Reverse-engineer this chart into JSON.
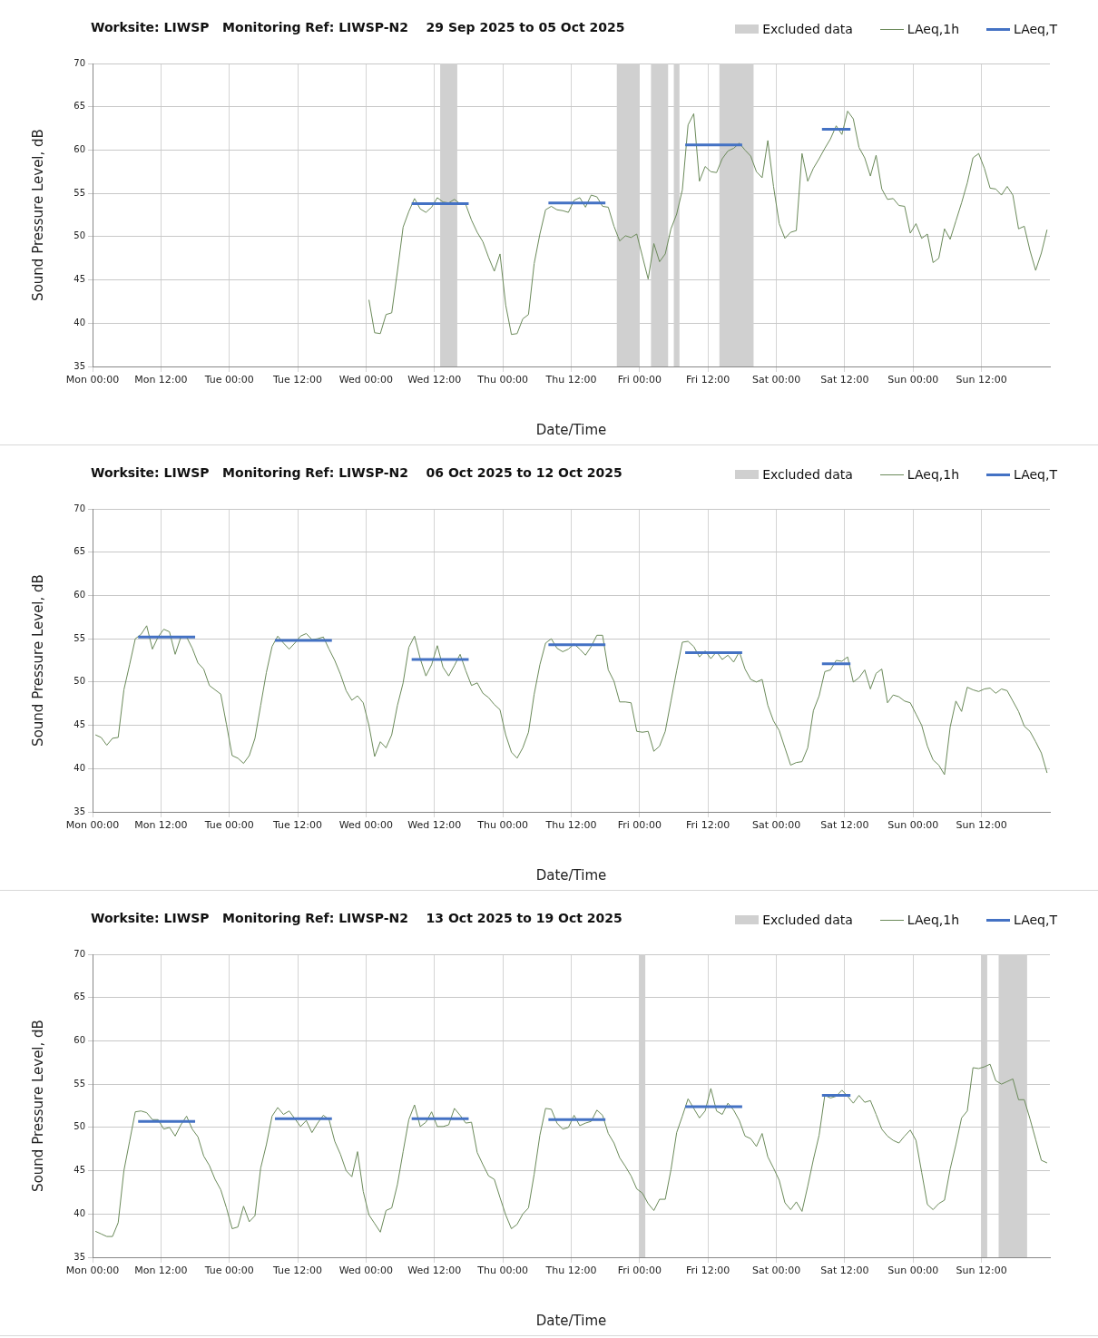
{
  "chart_data": [
    {
      "type": "line",
      "title": "Worksite: LIWSP   Monitoring Ref: LIWSP-N2    29 Sep 2025 to 05 Oct 2025",
      "xlabel": "Date/Time",
      "ylabel": "Sound Pressure Level, dB",
      "xlim": [
        "2025-09-29T00:00",
        "2025-10-06T00:00"
      ],
      "xticks": [
        {
          "value": "2025-09-29T00:00",
          "label": "Mon 00:00"
        },
        {
          "value": "2025-09-29T12:00",
          "label": "Mon 12:00"
        },
        {
          "value": "2025-09-30T00:00",
          "label": "Tue 00:00"
        },
        {
          "value": "2025-09-30T12:00",
          "label": "Tue 12:00"
        },
        {
          "value": "2025-10-01T00:00",
          "label": "Wed 00:00"
        },
        {
          "value": "2025-10-01T12:00",
          "label": "Wed 12:00"
        },
        {
          "value": "2025-10-02T00:00",
          "label": "Thu 00:00"
        },
        {
          "value": "2025-10-02T12:00",
          "label": "Thu 12:00"
        },
        {
          "value": "2025-10-03T00:00",
          "label": "Fri 00:00"
        },
        {
          "value": "2025-10-03T12:00",
          "label": "Fri 12:00"
        },
        {
          "value": "2025-10-04T00:00",
          "label": "Sat 00:00"
        },
        {
          "value": "2025-10-04T12:00",
          "label": "Sat 12:00"
        },
        {
          "value": "2025-10-05T00:00",
          "label": "Sun 00:00"
        },
        {
          "value": "2025-10-05T12:00",
          "label": "Sun 12:00"
        }
      ],
      "ylim": [
        35,
        70
      ],
      "yticks": [
        35,
        40,
        45,
        50,
        55,
        60,
        65,
        70
      ],
      "grid": true,
      "legend": "top right",
      "bands": [
        {
          "axis": "x",
          "from": "2025-10-01T13:00",
          "to": "2025-10-01T16:00",
          "label": "Excluded data",
          "color": "#d0d0d0"
        },
        {
          "axis": "x",
          "from": "2025-10-02T20:00",
          "to": "2025-10-03T00:00",
          "color": "#d0d0d0"
        },
        {
          "axis": "x",
          "from": "2025-10-03T02:00",
          "to": "2025-10-03T05:00",
          "color": "#d0d0d0"
        },
        {
          "axis": "x",
          "from": "2025-10-03T06:00",
          "to": "2025-10-03T07:00",
          "color": "#d0d0d0"
        },
        {
          "axis": "x",
          "from": "2025-10-03T14:00",
          "to": "2025-10-03T20:00",
          "color": "#d0d0d0"
        }
      ],
      "series": [
        {
          "name": "LAeq,1h",
          "color": "#6b8a5a",
          "x": [
            "2025-10-01T00:30",
            "2025-10-01T01:30",
            "2025-10-01T02:30",
            "2025-10-01T03:30",
            "2025-10-01T04:30",
            "2025-10-01T05:30",
            "2025-10-01T06:30",
            "2025-10-01T07:30",
            "2025-10-01T08:30",
            "2025-10-01T09:30",
            "2025-10-01T10:30",
            "2025-10-01T11:30",
            "2025-10-01T12:30",
            "2025-10-01T13:30",
            "2025-10-01T14:30",
            "2025-10-01T15:30",
            "2025-10-01T16:30",
            "2025-10-01T17:30",
            "2025-10-01T18:30",
            "2025-10-01T19:30",
            "2025-10-01T20:30",
            "2025-10-01T21:30",
            "2025-10-01T22:30",
            "2025-10-01T23:30",
            "2025-10-02T00:30",
            "2025-10-02T01:30",
            "2025-10-02T02:30",
            "2025-10-02T03:30",
            "2025-10-02T04:30",
            "2025-10-02T05:30",
            "2025-10-02T06:30",
            "2025-10-02T07:30",
            "2025-10-02T08:30",
            "2025-10-02T09:30",
            "2025-10-02T10:30",
            "2025-10-02T11:30",
            "2025-10-02T12:30",
            "2025-10-02T13:30",
            "2025-10-02T14:30",
            "2025-10-02T15:30",
            "2025-10-02T16:30",
            "2025-10-02T17:30",
            "2025-10-02T18:30",
            "2025-10-02T19:30",
            "2025-10-02T20:30",
            "2025-10-02T21:30",
            "2025-10-02T22:30",
            "2025-10-02T23:30",
            "2025-10-03T00:30",
            "2025-10-03T01:30",
            "2025-10-03T02:30",
            "2025-10-03T03:30",
            "2025-10-03T04:30",
            "2025-10-03T05:30",
            "2025-10-03T06:30",
            "2025-10-03T07:30",
            "2025-10-03T08:30",
            "2025-10-03T09:30",
            "2025-10-03T10:30",
            "2025-10-03T11:30",
            "2025-10-03T12:30",
            "2025-10-03T13:30",
            "2025-10-03T14:30",
            "2025-10-03T15:30",
            "2025-10-03T16:30",
            "2025-10-03T17:30",
            "2025-10-03T18:30",
            "2025-10-03T19:30",
            "2025-10-03T20:30",
            "2025-10-03T21:30",
            "2025-10-03T22:30",
            "2025-10-03T23:30",
            "2025-10-04T00:30",
            "2025-10-04T01:30",
            "2025-10-04T02:30",
            "2025-10-04T03:30",
            "2025-10-04T04:30",
            "2025-10-04T05:30",
            "2025-10-04T06:30",
            "2025-10-04T07:30",
            "2025-10-04T08:30",
            "2025-10-04T09:30",
            "2025-10-04T10:30",
            "2025-10-04T11:30",
            "2025-10-04T12:30",
            "2025-10-04T13:30",
            "2025-10-04T14:30",
            "2025-10-04T15:30",
            "2025-10-04T16:30",
            "2025-10-04T17:30",
            "2025-10-04T18:30",
            "2025-10-04T19:30",
            "2025-10-04T20:30",
            "2025-10-04T21:30",
            "2025-10-04T22:30",
            "2025-10-04T23:30",
            "2025-10-05T00:30",
            "2025-10-05T01:30",
            "2025-10-05T02:30",
            "2025-10-05T03:30",
            "2025-10-05T04:30",
            "2025-10-05T05:30",
            "2025-10-05T06:30",
            "2025-10-05T07:30",
            "2025-10-05T08:30",
            "2025-10-05T09:30",
            "2025-10-05T10:30",
            "2025-10-05T11:30",
            "2025-10-05T12:30",
            "2025-10-05T13:30",
            "2025-10-05T14:30",
            "2025-10-05T15:30",
            "2025-10-05T16:30",
            "2025-10-05T17:30",
            "2025-10-05T18:30",
            "2025-10-05T19:30",
            "2025-10-05T20:30",
            "2025-10-05T21:30",
            "2025-10-05T22:30",
            "2025-10-05T23:30"
          ],
          "values": [
            42.7,
            38.9,
            38.8,
            41.0,
            41.2,
            46.0,
            51.1,
            52.9,
            54.4,
            53.2,
            52.8,
            53.4,
            54.5,
            54.0,
            53.9,
            54.3,
            53.8,
            53.7,
            51.9,
            50.5,
            49.4,
            47.6,
            46.0,
            48.0,
            42.1,
            38.7,
            38.8,
            40.5,
            41.0,
            46.9,
            50.3,
            53.1,
            53.5,
            53.1,
            53.0,
            52.8,
            54.2,
            54.5,
            53.4,
            54.8,
            54.6,
            53.5,
            53.4,
            51.2,
            49.5,
            50.1,
            49.9,
            50.3,
            47.7,
            45.1,
            49.2,
            47.1,
            48.0,
            50.9,
            52.6,
            55.4,
            62.9,
            64.2,
            56.4,
            58.1,
            57.5,
            57.4,
            59.0,
            59.9,
            60.2,
            60.8,
            60.0,
            59.3,
            57.5,
            56.8,
            61.1,
            55.8,
            51.5,
            49.8,
            50.5,
            50.7,
            59.6,
            56.4,
            57.9,
            59.0,
            60.2,
            61.3,
            62.8,
            61.8,
            64.5,
            63.6,
            60.3,
            59.1,
            57.0,
            59.4,
            55.5,
            54.3,
            54.4,
            53.6,
            53.5,
            50.4,
            51.5,
            49.8,
            50.3,
            47.0,
            47.5,
            50.9,
            49.7,
            51.8,
            53.9,
            56.2,
            59.1,
            59.6,
            57.9,
            55.6,
            55.5,
            54.8,
            55.8,
            54.8,
            50.9,
            51.2,
            48.4,
            46.1,
            48.1,
            50.8
          ]
        },
        {
          "name": "LAeq,T",
          "color": "#4472c4",
          "x": [
            "2025-10-01T08:00",
            "2025-10-01T18:00",
            "2025-10-01T19:00",
            "2025-10-02T08:00",
            "2025-10-02T18:00",
            "2025-10-02T19:00",
            "2025-10-03T08:00",
            "2025-10-03T18:00",
            "2025-10-03T19:00",
            "2025-10-04T08:00",
            "2025-10-04T13:00"
          ],
          "values": [
            53.8,
            53.8,
            null,
            53.9,
            53.9,
            null,
            60.6,
            60.6,
            null,
            62.4,
            62.4
          ]
        }
      ]
    },
    {
      "type": "line",
      "title": "Worksite: LIWSP   Monitoring Ref: LIWSP-N2    06 Oct 2025 to 12 Oct 2025",
      "xlabel": "Date/Time",
      "ylabel": "Sound Pressure Level, dB",
      "xlim": [
        "2025-10-06T00:00",
        "2025-10-13T00:00"
      ],
      "xticks": [
        {
          "value": "2025-10-06T00:00",
          "label": "Mon 00:00"
        },
        {
          "value": "2025-10-06T12:00",
          "label": "Mon 12:00"
        },
        {
          "value": "2025-10-07T00:00",
          "label": "Tue 00:00"
        },
        {
          "value": "2025-10-07T12:00",
          "label": "Tue 12:00"
        },
        {
          "value": "2025-10-08T00:00",
          "label": "Wed 00:00"
        },
        {
          "value": "2025-10-08T12:00",
          "label": "Wed 12:00"
        },
        {
          "value": "2025-10-09T00:00",
          "label": "Thu 00:00"
        },
        {
          "value": "2025-10-09T12:00",
          "label": "Thu 12:00"
        },
        {
          "value": "2025-10-10T00:00",
          "label": "Fri 00:00"
        },
        {
          "value": "2025-10-10T12:00",
          "label": "Fri 12:00"
        },
        {
          "value": "2025-10-11T00:00",
          "label": "Sat 00:00"
        },
        {
          "value": "2025-10-11T12:00",
          "label": "Sat 12:00"
        },
        {
          "value": "2025-10-12T00:00",
          "label": "Sun 00:00"
        },
        {
          "value": "2025-10-12T12:00",
          "label": "Sun 12:00"
        }
      ],
      "ylim": [
        35,
        70
      ],
      "yticks": [
        35,
        40,
        45,
        50,
        55,
        60,
        65,
        70
      ],
      "grid": true,
      "legend": "top right",
      "annotations": [
        "Excluded data"
      ],
      "series": [
        {
          "name": "LAeq,1h",
          "color": "#6b8a5a",
          "x": [
            "2025-10-06T00:30",
            "2025-10-06T01:30",
            "2025-10-06T02:30",
            "2025-10-06T03:30",
            "2025-10-06T04:30",
            "2025-10-06T05:30",
            "2025-10-06T06:30",
            "2025-10-06T07:30",
            "2025-10-06T08:30",
            "2025-10-06T09:30",
            "2025-10-06T10:30",
            "2025-10-06T11:30",
            "2025-10-06T12:30",
            "2025-10-06T13:30",
            "2025-10-06T14:30",
            "2025-10-06T15:30",
            "2025-10-06T16:30",
            "2025-10-06T17:30",
            "2025-10-06T18:30",
            "2025-10-06T19:30",
            "2025-10-06T20:30",
            "2025-10-06T21:30",
            "2025-10-06T22:30",
            "2025-10-06T23:30",
            "2025-10-07T00:30",
            "2025-10-07T01:30",
            "2025-10-07T02:30",
            "2025-10-07T03:30",
            "2025-10-07T04:30",
            "2025-10-07T05:30",
            "2025-10-07T06:30",
            "2025-10-07T07:30",
            "2025-10-07T08:30",
            "2025-10-07T09:30",
            "2025-10-07T10:30",
            "2025-10-07T11:30",
            "2025-10-07T12:30",
            "2025-10-07T13:30",
            "2025-10-07T14:30",
            "2025-10-07T15:30",
            "2025-10-07T16:30",
            "2025-10-07T17:30",
            "2025-10-07T18:30",
            "2025-10-07T19:30",
            "2025-10-07T20:30",
            "2025-10-07T21:30",
            "2025-10-07T22:30",
            "2025-10-07T23:30",
            "2025-10-08T00:30",
            "2025-10-08T01:30",
            "2025-10-08T02:30",
            "2025-10-08T03:30",
            "2025-10-08T04:30",
            "2025-10-08T05:30",
            "2025-10-08T06:30",
            "2025-10-08T07:30",
            "2025-10-08T08:30",
            "2025-10-08T09:30",
            "2025-10-08T10:30",
            "2025-10-08T11:30",
            "2025-10-08T12:30",
            "2025-10-08T13:30",
            "2025-10-08T14:30",
            "2025-10-08T15:30",
            "2025-10-08T16:30",
            "2025-10-08T17:30",
            "2025-10-08T18:30",
            "2025-10-08T19:30",
            "2025-10-08T20:30",
            "2025-10-08T21:30",
            "2025-10-08T22:30",
            "2025-10-08T23:30",
            "2025-10-09T00:30",
            "2025-10-09T01:30",
            "2025-10-09T02:30",
            "2025-10-09T03:30",
            "2025-10-09T04:30",
            "2025-10-09T05:30",
            "2025-10-09T06:30",
            "2025-10-09T07:30",
            "2025-10-09T08:30",
            "2025-10-09T09:30",
            "2025-10-09T10:30",
            "2025-10-09T11:30",
            "2025-10-09T12:30",
            "2025-10-09T13:30",
            "2025-10-09T14:30",
            "2025-10-09T15:30",
            "2025-10-09T16:30",
            "2025-10-09T17:30",
            "2025-10-09T18:30",
            "2025-10-09T19:30",
            "2025-10-09T20:30",
            "2025-10-09T21:30",
            "2025-10-09T22:30",
            "2025-10-09T23:30",
            "2025-10-10T00:30",
            "2025-10-10T01:30",
            "2025-10-10T02:30",
            "2025-10-10T03:30",
            "2025-10-10T04:30",
            "2025-10-10T05:30",
            "2025-10-10T06:30",
            "2025-10-10T07:30",
            "2025-10-10T08:30",
            "2025-10-10T09:30",
            "2025-10-10T10:30",
            "2025-10-10T11:30",
            "2025-10-10T12:30",
            "2025-10-10T13:30",
            "2025-10-10T14:30",
            "2025-10-10T15:30",
            "2025-10-10T16:30",
            "2025-10-10T17:30",
            "2025-10-10T18:30",
            "2025-10-10T19:30",
            "2025-10-10T20:30",
            "2025-10-10T21:30",
            "2025-10-10T22:30",
            "2025-10-10T23:30",
            "2025-10-11T00:30",
            "2025-10-11T01:30",
            "2025-10-11T02:30",
            "2025-10-11T03:30",
            "2025-10-11T04:30",
            "2025-10-11T05:30",
            "2025-10-11T06:30",
            "2025-10-11T07:30",
            "2025-10-11T08:30",
            "2025-10-11T09:30",
            "2025-10-11T10:30",
            "2025-10-11T11:30",
            "2025-10-11T12:30",
            "2025-10-11T13:30",
            "2025-10-11T14:30",
            "2025-10-11T15:30",
            "2025-10-11T16:30",
            "2025-10-11T17:30",
            "2025-10-11T18:30",
            "2025-10-11T19:30",
            "2025-10-11T20:30",
            "2025-10-11T21:30",
            "2025-10-11T22:30",
            "2025-10-11T23:30",
            "2025-10-12T00:30",
            "2025-10-12T01:30",
            "2025-10-12T02:30",
            "2025-10-12T03:30",
            "2025-10-12T04:30",
            "2025-10-12T05:30",
            "2025-10-12T06:30",
            "2025-10-12T07:30",
            "2025-10-12T08:30",
            "2025-10-12T09:30",
            "2025-10-12T10:30",
            "2025-10-12T11:30",
            "2025-10-12T12:30",
            "2025-10-12T13:30",
            "2025-10-12T14:30",
            "2025-10-12T15:30",
            "2025-10-12T16:30",
            "2025-10-12T17:30",
            "2025-10-12T18:30",
            "2025-10-12T19:30",
            "2025-10-12T20:30",
            "2025-10-12T21:30",
            "2025-10-12T22:30",
            "2025-10-12T23:30"
          ],
          "values": [
            43.9,
            43.6,
            42.7,
            43.5,
            43.6,
            49.1,
            52.0,
            55.0,
            55.5,
            56.5,
            53.8,
            55.2,
            56.1,
            55.8,
            53.2,
            55.2,
            55.2,
            53.9,
            52.2,
            51.5,
            49.6,
            49.1,
            48.6,
            45.1,
            41.5,
            41.2,
            40.6,
            41.5,
            43.5,
            47.3,
            51.1,
            54.1,
            55.3,
            54.5,
            53.8,
            54.5,
            55.3,
            55.6,
            54.9,
            55.0,
            55.2,
            53.8,
            52.5,
            50.9,
            49.0,
            47.9,
            48.4,
            47.6,
            45.0,
            41.4,
            43.1,
            42.4,
            43.9,
            47.3,
            49.9,
            54.0,
            55.3,
            52.7,
            50.7,
            52.0,
            54.2,
            51.7,
            50.7,
            51.9,
            53.2,
            51.3,
            49.6,
            49.9,
            48.7,
            48.2,
            47.4,
            46.8,
            43.9,
            41.9,
            41.2,
            42.4,
            44.2,
            48.6,
            52.0,
            54.5,
            55.0,
            53.9,
            53.5,
            53.8,
            54.4,
            53.8,
            53.1,
            54.1,
            55.4,
            55.4,
            51.4,
            50.1,
            47.7,
            47.7,
            47.6,
            44.3,
            44.2,
            44.3,
            42.0,
            42.6,
            44.3,
            47.8,
            51.3,
            54.6,
            54.7,
            54.1,
            52.9,
            53.6,
            52.7,
            53.5,
            52.6,
            53.1,
            52.3,
            53.5,
            51.5,
            50.3,
            50.0,
            50.3,
            47.3,
            45.5,
            44.4,
            42.4,
            40.4,
            40.7,
            40.8,
            42.4,
            46.7,
            48.4,
            51.2,
            51.4,
            52.5,
            52.4,
            52.9,
            50.0,
            50.5,
            51.4,
            49.2,
            51.0,
            51.5,
            47.6,
            48.5,
            48.3,
            47.8,
            47.6,
            46.3,
            45.0,
            42.6,
            41.0,
            40.4,
            39.3,
            44.8,
            47.8,
            46.6,
            49.4,
            49.1,
            48.9,
            49.2,
            49.3,
            48.7,
            49.2,
            49.0,
            47.8,
            46.6,
            44.9,
            44.3,
            43.1,
            41.8,
            39.5
          ]
        },
        {
          "name": "LAeq,T",
          "color": "#4472c4",
          "x": [
            "2025-10-06T08:00",
            "2025-10-06T18:00",
            "2025-10-06T19:00",
            "2025-10-07T08:00",
            "2025-10-07T18:00",
            "2025-10-07T19:00",
            "2025-10-08T08:00",
            "2025-10-08T18:00",
            "2025-10-08T19:00",
            "2025-10-09T08:00",
            "2025-10-09T18:00",
            "2025-10-09T19:00",
            "2025-10-10T08:00",
            "2025-10-10T18:00",
            "2025-10-10T19:00",
            "2025-10-11T08:00",
            "2025-10-11T13:00"
          ],
          "values": [
            55.2,
            55.2,
            null,
            54.8,
            54.8,
            null,
            52.6,
            52.6,
            null,
            54.3,
            54.3,
            null,
            53.4,
            53.4,
            null,
            52.1,
            52.1
          ]
        }
      ]
    },
    {
      "type": "line",
      "title": "Worksite: LIWSP   Monitoring Ref: LIWSP-N2    13 Oct 2025 to 19 Oct 2025",
      "xlabel": "Date/Time",
      "ylabel": "Sound Pressure Level, dB",
      "xlim": [
        "2025-10-13T00:00",
        "2025-10-20T00:00"
      ],
      "xticks": [
        {
          "value": "2025-10-13T00:00",
          "label": "Mon 00:00"
        },
        {
          "value": "2025-10-13T12:00",
          "label": "Mon 12:00"
        },
        {
          "value": "2025-10-14T00:00",
          "label": "Tue 00:00"
        },
        {
          "value": "2025-10-14T12:00",
          "label": "Tue 12:00"
        },
        {
          "value": "2025-10-15T00:00",
          "label": "Wed 00:00"
        },
        {
          "value": "2025-10-15T12:00",
          "label": "Wed 12:00"
        },
        {
          "value": "2025-10-16T00:00",
          "label": "Thu 00:00"
        },
        {
          "value": "2025-10-16T12:00",
          "label": "Thu 12:00"
        },
        {
          "value": "2025-10-17T00:00",
          "label": "Fri 00:00"
        },
        {
          "value": "2025-10-17T12:00",
          "label": "Fri 12:00"
        },
        {
          "value": "2025-10-18T00:00",
          "label": "Sat 00:00"
        },
        {
          "value": "2025-10-18T12:00",
          "label": "Sat 12:00"
        },
        {
          "value": "2025-10-19T00:00",
          "label": "Sun 00:00"
        },
        {
          "value": "2025-10-19T12:00",
          "label": "Sun 12:00"
        }
      ],
      "ylim": [
        35,
        70
      ],
      "yticks": [
        35,
        40,
        45,
        50,
        55,
        60,
        65,
        70
      ],
      "grid": true,
      "legend": "top right",
      "bands": [
        {
          "axis": "x",
          "from": "2025-10-17T00:00",
          "to": "2025-10-17T01:00",
          "label": "Excluded data",
          "color": "#d0d0d0"
        },
        {
          "axis": "x",
          "from": "2025-10-19T12:00",
          "to": "2025-10-19T13:00",
          "color": "#d0d0d0"
        },
        {
          "axis": "x",
          "from": "2025-10-19T15:00",
          "to": "2025-10-19T20:00",
          "color": "#d0d0d0"
        }
      ],
      "series": [
        {
          "name": "LAeq,1h",
          "color": "#6b8a5a",
          "x": [
            "2025-10-13T00:30",
            "2025-10-13T01:30",
            "2025-10-13T02:30",
            "2025-10-13T03:30",
            "2025-10-13T04:30",
            "2025-10-13T05:30",
            "2025-10-13T06:30",
            "2025-10-13T07:30",
            "2025-10-13T08:30",
            "2025-10-13T09:30",
            "2025-10-13T10:30",
            "2025-10-13T11:30",
            "2025-10-13T12:30",
            "2025-10-13T13:30",
            "2025-10-13T14:30",
            "2025-10-13T15:30",
            "2025-10-13T16:30",
            "2025-10-13T17:30",
            "2025-10-13T18:30",
            "2025-10-13T19:30",
            "2025-10-13T20:30",
            "2025-10-13T21:30",
            "2025-10-13T22:30",
            "2025-10-13T23:30",
            "2025-10-14T00:30",
            "2025-10-14T01:30",
            "2025-10-14T02:30",
            "2025-10-14T03:30",
            "2025-10-14T04:30",
            "2025-10-14T05:30",
            "2025-10-14T06:30",
            "2025-10-14T07:30",
            "2025-10-14T08:30",
            "2025-10-14T09:30",
            "2025-10-14T10:30",
            "2025-10-14T11:30",
            "2025-10-14T12:30",
            "2025-10-14T13:30",
            "2025-10-14T14:30",
            "2025-10-14T15:30",
            "2025-10-14T16:30",
            "2025-10-14T17:30",
            "2025-10-14T18:30",
            "2025-10-14T19:30",
            "2025-10-14T20:30",
            "2025-10-14T21:30",
            "2025-10-14T22:30",
            "2025-10-14T23:30",
            "2025-10-15T00:30",
            "2025-10-15T01:30",
            "2025-10-15T02:30",
            "2025-10-15T03:30",
            "2025-10-15T04:30",
            "2025-10-15T05:30",
            "2025-10-15T06:30",
            "2025-10-15T07:30",
            "2025-10-15T08:30",
            "2025-10-15T09:30",
            "2025-10-15T10:30",
            "2025-10-15T11:30",
            "2025-10-15T12:30",
            "2025-10-15T13:30",
            "2025-10-15T14:30",
            "2025-10-15T15:30",
            "2025-10-15T16:30",
            "2025-10-15T17:30",
            "2025-10-15T18:30",
            "2025-10-15T19:30",
            "2025-10-15T20:30",
            "2025-10-15T21:30",
            "2025-10-15T22:30",
            "2025-10-15T23:30",
            "2025-10-16T00:30",
            "2025-10-16T01:30",
            "2025-10-16T02:30",
            "2025-10-16T03:30",
            "2025-10-16T04:30",
            "2025-10-16T05:30",
            "2025-10-16T06:30",
            "2025-10-16T07:30",
            "2025-10-16T08:30",
            "2025-10-16T09:30",
            "2025-10-16T10:30",
            "2025-10-16T11:30",
            "2025-10-16T12:30",
            "2025-10-16T13:30",
            "2025-10-16T14:30",
            "2025-10-16T15:30",
            "2025-10-16T16:30",
            "2025-10-16T17:30",
            "2025-10-16T18:30",
            "2025-10-16T19:30",
            "2025-10-16T20:30",
            "2025-10-16T21:30",
            "2025-10-16T22:30",
            "2025-10-16T23:30",
            "2025-10-17T00:30",
            "2025-10-17T01:30",
            "2025-10-17T02:30",
            "2025-10-17T03:30",
            "2025-10-17T04:30",
            "2025-10-17T05:30",
            "2025-10-17T06:30",
            "2025-10-17T07:30",
            "2025-10-17T08:30",
            "2025-10-17T09:30",
            "2025-10-17T10:30",
            "2025-10-17T11:30",
            "2025-10-17T12:30",
            "2025-10-17T13:30",
            "2025-10-17T14:30",
            "2025-10-17T15:30",
            "2025-10-17T16:30",
            "2025-10-17T17:30",
            "2025-10-17T18:30",
            "2025-10-17T19:30",
            "2025-10-17T20:30",
            "2025-10-17T21:30",
            "2025-10-17T22:30",
            "2025-10-17T23:30",
            "2025-10-18T00:30",
            "2025-10-18T01:30",
            "2025-10-18T02:30",
            "2025-10-18T03:30",
            "2025-10-18T04:30",
            "2025-10-18T05:30",
            "2025-10-18T06:30",
            "2025-10-18T07:30",
            "2025-10-18T08:30",
            "2025-10-18T09:30",
            "2025-10-18T10:30",
            "2025-10-18T11:30",
            "2025-10-18T12:30",
            "2025-10-18T13:30",
            "2025-10-18T14:30",
            "2025-10-18T15:30",
            "2025-10-18T16:30",
            "2025-10-18T17:30",
            "2025-10-18T18:30",
            "2025-10-18T19:30",
            "2025-10-18T20:30",
            "2025-10-18T21:30",
            "2025-10-18T22:30",
            "2025-10-18T23:30",
            "2025-10-19T00:30",
            "2025-10-19T01:30",
            "2025-10-19T02:30",
            "2025-10-19T03:30",
            "2025-10-19T04:30",
            "2025-10-19T05:30",
            "2025-10-19T06:30",
            "2025-10-19T07:30",
            "2025-10-19T08:30",
            "2025-10-19T09:30",
            "2025-10-19T10:30",
            "2025-10-19T11:30",
            "2025-10-19T12:30",
            "2025-10-19T13:30",
            "2025-10-19T14:30",
            "2025-10-19T15:30",
            "2025-10-19T16:30",
            "2025-10-19T17:30",
            "2025-10-19T18:30",
            "2025-10-19T19:30",
            "2025-10-19T20:30",
            "2025-10-19T21:30",
            "2025-10-19T22:30",
            "2025-10-19T23:30"
          ],
          "values": [
            38.0,
            37.7,
            37.4,
            37.4,
            39.0,
            45.0,
            48.4,
            51.8,
            51.9,
            51.7,
            50.9,
            50.9,
            49.8,
            50.0,
            49.0,
            50.3,
            51.3,
            49.8,
            48.9,
            46.7,
            45.6,
            44.0,
            42.8,
            40.7,
            38.3,
            38.5,
            40.9,
            39.1,
            39.8,
            45.3,
            48.0,
            51.3,
            52.3,
            51.5,
            51.9,
            51.0,
            50.1,
            50.8,
            49.4,
            50.5,
            51.4,
            50.9,
            48.4,
            46.9,
            45.0,
            44.3,
            47.2,
            42.6,
            39.9,
            38.9,
            37.9,
            40.4,
            40.7,
            43.4,
            47.2,
            50.9,
            52.6,
            50.1,
            50.6,
            51.8,
            50.1,
            50.1,
            50.3,
            52.2,
            51.4,
            50.5,
            50.6,
            47.1,
            45.7,
            44.4,
            44.0,
            41.9,
            39.9,
            38.3,
            38.8,
            40.0,
            40.7,
            44.6,
            49.1,
            52.2,
            52.1,
            50.5,
            49.8,
            50.0,
            51.4,
            50.2,
            50.5,
            50.7,
            52.0,
            51.4,
            49.3,
            48.2,
            46.5,
            45.5,
            44.4,
            42.9,
            42.4,
            41.2,
            40.4,
            41.7,
            41.7,
            45.1,
            49.4,
            51.3,
            53.3,
            52.2,
            51.1,
            51.9,
            54.5,
            51.9,
            51.5,
            52.8,
            52.0,
            50.8,
            49.0,
            48.7,
            47.8,
            49.3,
            46.6,
            45.3,
            43.9,
            41.3,
            40.5,
            41.4,
            40.3,
            43.2,
            46.3,
            49.1,
            53.7,
            53.4,
            53.6,
            54.3,
            53.6,
            52.8,
            53.7,
            52.9,
            53.1,
            51.5,
            49.8,
            49.0,
            48.5,
            48.2,
            49.0,
            49.7,
            48.5,
            44.8,
            41.1,
            40.5,
            41.2,
            41.6,
            45.2,
            48.0,
            51.1,
            51.9,
            56.9,
            56.8,
            57.0,
            57.3,
            55.4,
            55.0,
            55.3,
            55.6,
            53.2,
            53.2,
            51.0,
            48.6,
            46.2,
            45.9
          ]
        },
        {
          "name": "LAeq,T",
          "color": "#4472c4",
          "x": [
            "2025-10-13T08:00",
            "2025-10-13T18:00",
            "2025-10-13T19:00",
            "2025-10-14T08:00",
            "2025-10-14T18:00",
            "2025-10-14T19:00",
            "2025-10-15T08:00",
            "2025-10-15T18:00",
            "2025-10-15T19:00",
            "2025-10-16T08:00",
            "2025-10-16T18:00",
            "2025-10-16T19:00",
            "2025-10-17T08:00",
            "2025-10-17T18:00",
            "2025-10-17T19:00",
            "2025-10-18T08:00",
            "2025-10-18T13:00"
          ],
          "values": [
            50.7,
            50.7,
            null,
            51.0,
            51.0,
            null,
            51.0,
            51.0,
            null,
            50.9,
            50.9,
            null,
            52.4,
            52.4,
            null,
            53.7,
            53.7
          ]
        }
      ]
    }
  ]
}
